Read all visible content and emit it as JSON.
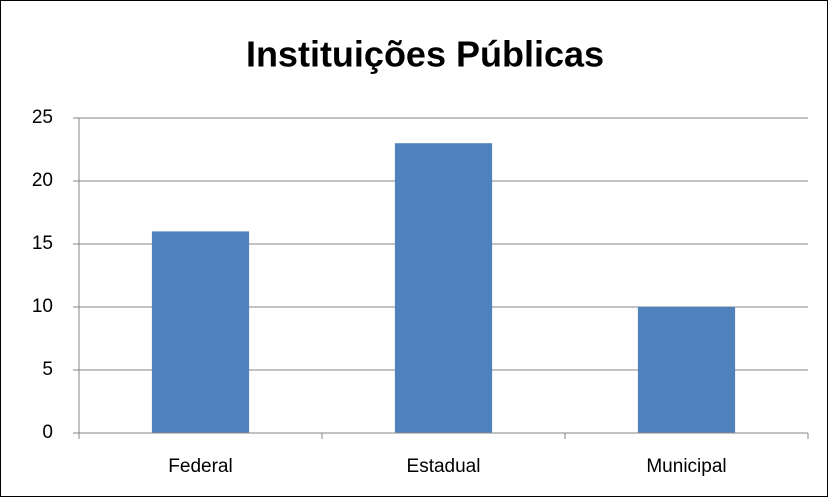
{
  "chart_data": {
    "type": "bar",
    "title": "Instituições Públicas",
    "categories": [
      "Federal",
      "Estadual",
      "Municipal"
    ],
    "values": [
      16,
      23,
      10
    ],
    "color": "#4f81bd",
    "ylim": [
      0,
      25
    ],
    "yticks": [
      0,
      5,
      10,
      15,
      20,
      25
    ],
    "grid": true
  }
}
